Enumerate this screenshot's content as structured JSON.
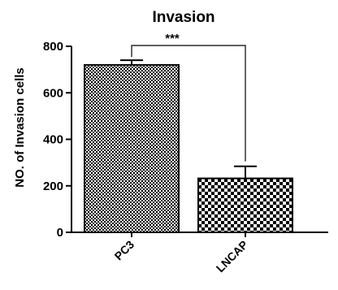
{
  "chart_data": {
    "type": "bar",
    "title": "Invasion",
    "xlabel": "",
    "ylabel": "NO. of Invasion cells",
    "categories": [
      "PC3",
      "LNCAP"
    ],
    "values": [
      720,
      232
    ],
    "errors": [
      20,
      52
    ],
    "ylim": [
      0,
      800
    ],
    "yticks": [
      0,
      200,
      400,
      600,
      800
    ],
    "ytick_labels": [
      "0",
      "200",
      "400",
      "600",
      "800"
    ],
    "grid": false,
    "legend": "none",
    "bar_patterns": [
      "dense-checker",
      "coarse-checker"
    ],
    "annotation": {
      "text": "***",
      "between": [
        "PC3",
        "LNCAP"
      ]
    }
  }
}
